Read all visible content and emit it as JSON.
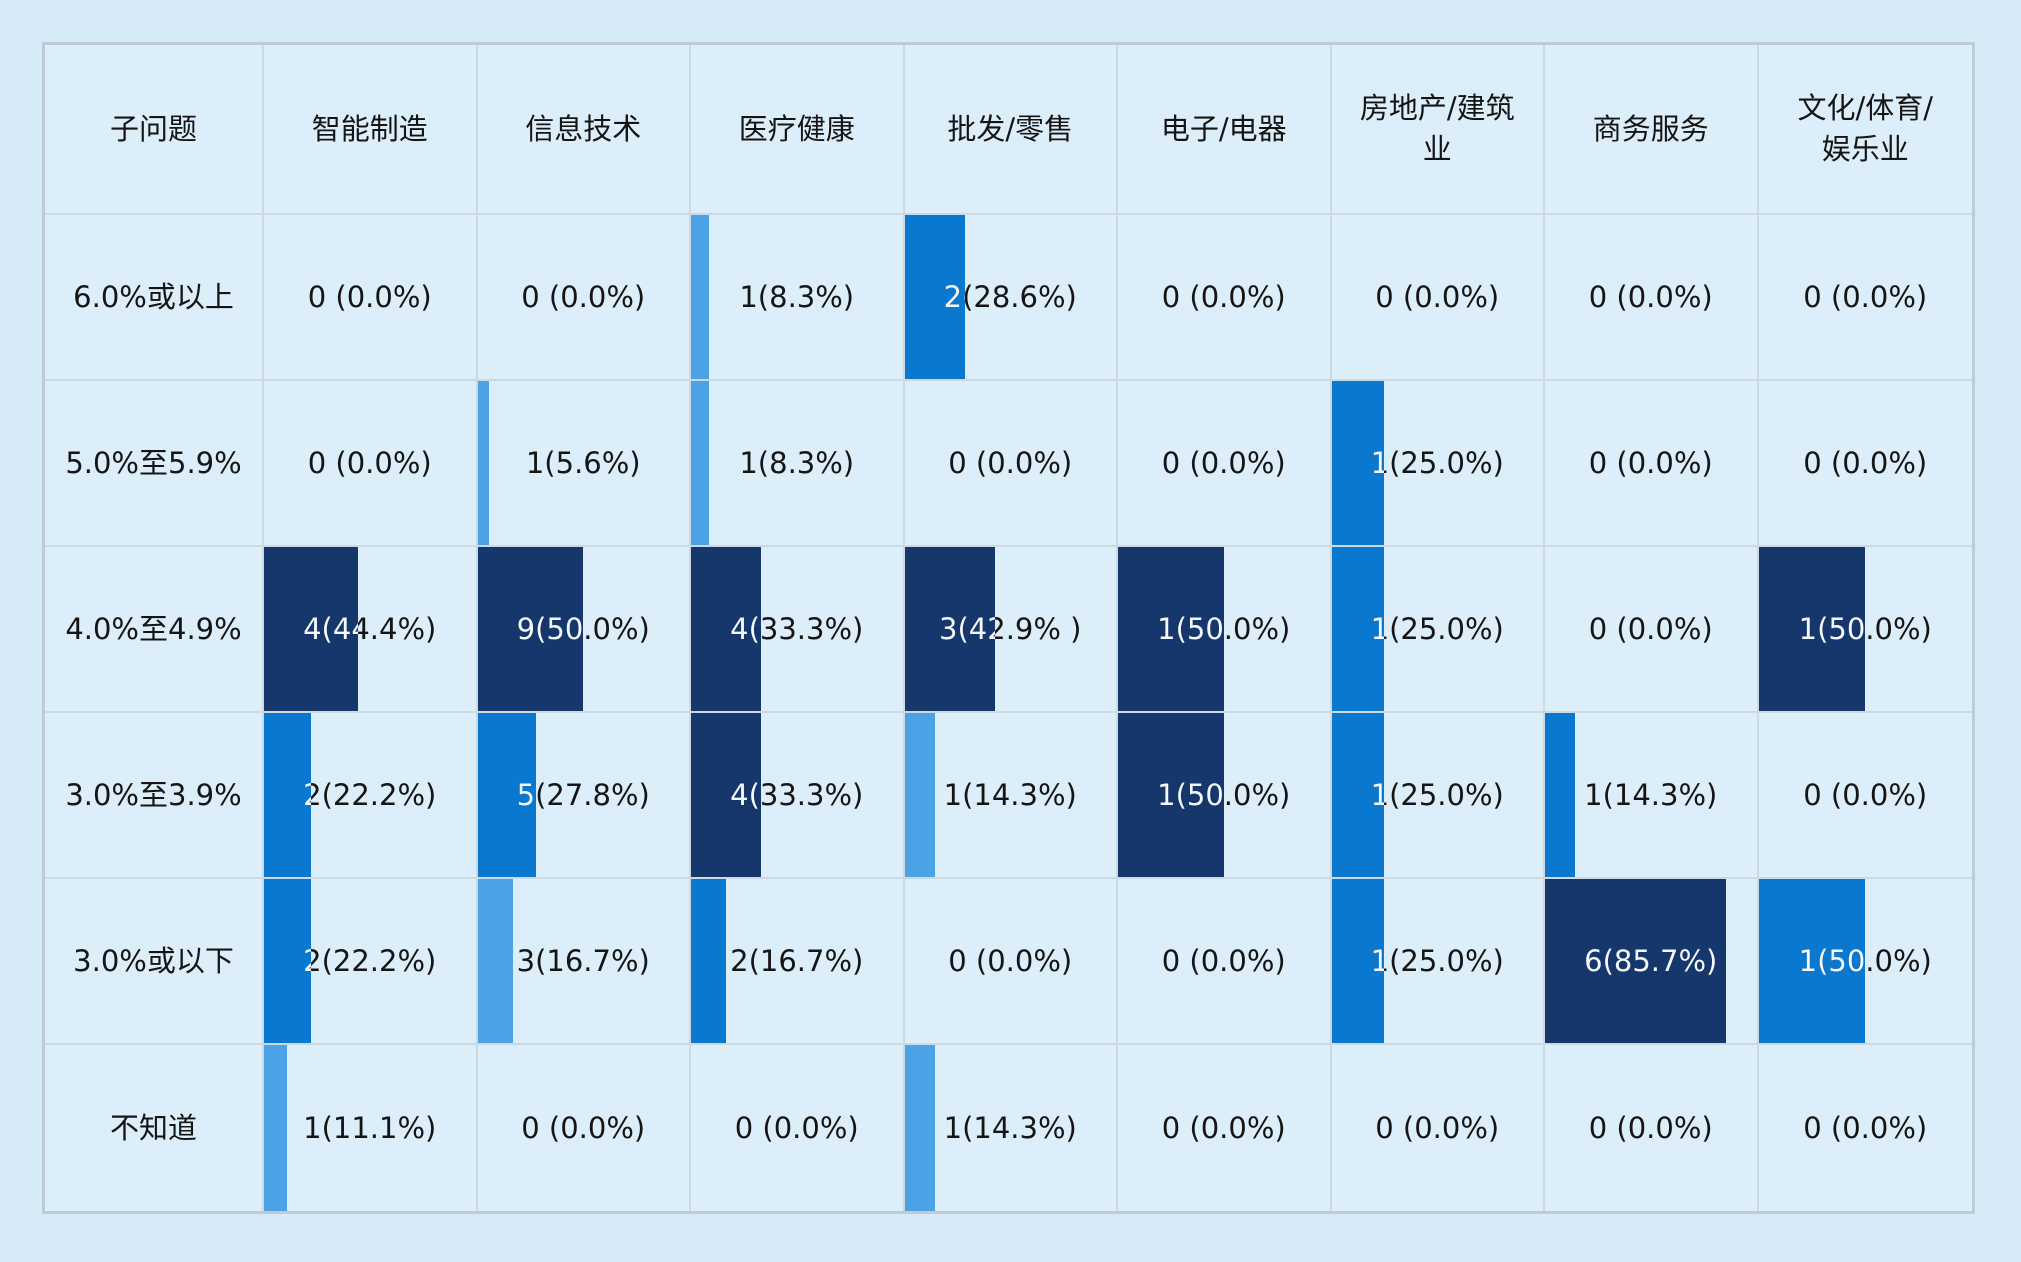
{
  "page": {
    "background_color": "#d7eaf7",
    "table_background": "#dceef9",
    "grid_line_color": "#cdd9e1",
    "outer_border_color": "#c0ccd5",
    "text_color": "#151515",
    "bar_text_color": "#ffffff"
  },
  "chart_data": {
    "type": "table",
    "title": "",
    "description": "Survey cross-tab table with in-cell data bars; each cell shows count(percent) per industry",
    "bar_colors": {
      "light": "#4BA3E6",
      "medium": "#0A78CF",
      "dark": "#15376B"
    },
    "columns": [
      "子问题",
      "智能制造",
      "信息技术",
      "医疗健康",
      "批发/零售",
      "电子/电器",
      "房地产/建筑业",
      "商务服务",
      "文化/体育/娱乐业"
    ],
    "rows": [
      {
        "label": "6.0%或以上",
        "cells": [
          {
            "text": "0 (0.0%)",
            "count": 0,
            "pct": 0
          },
          {
            "text": "0 (0.0%)",
            "count": 0,
            "pct": 0
          },
          {
            "text": "1(8.3%)",
            "count": 1,
            "pct": 8.3,
            "level": "light"
          },
          {
            "text": "2(28.6%)",
            "count": 2,
            "pct": 28.6,
            "level": "medium"
          },
          {
            "text": "0 (0.0%)",
            "count": 0,
            "pct": 0
          },
          {
            "text": "0 (0.0%)",
            "count": 0,
            "pct": 0
          },
          {
            "text": "0 (0.0%)",
            "count": 0,
            "pct": 0
          },
          {
            "text": "0 (0.0%)",
            "count": 0,
            "pct": 0
          }
        ]
      },
      {
        "label": "5.0%至5.9%",
        "cells": [
          {
            "text": "0 (0.0%)",
            "count": 0,
            "pct": 0
          },
          {
            "text": "1(5.6%)",
            "count": 1,
            "pct": 5.6,
            "level": "light"
          },
          {
            "text": "1(8.3%)",
            "count": 1,
            "pct": 8.3,
            "level": "light"
          },
          {
            "text": "0 (0.0%)",
            "count": 0,
            "pct": 0
          },
          {
            "text": "0 (0.0%)",
            "count": 0,
            "pct": 0
          },
          {
            "text": "1(25.0%)",
            "count": 1,
            "pct": 25.0,
            "level": "medium"
          },
          {
            "text": "0 (0.0%)",
            "count": 0,
            "pct": 0
          },
          {
            "text": "0 (0.0%)",
            "count": 0,
            "pct": 0
          }
        ]
      },
      {
        "label": "4.0%至4.9%",
        "cells": [
          {
            "text": "4(44.4%)",
            "count": 4,
            "pct": 44.4,
            "level": "dark"
          },
          {
            "text": "9(50.0%)",
            "count": 9,
            "pct": 50.0,
            "level": "dark"
          },
          {
            "text": "4(33.3%)",
            "count": 4,
            "pct": 33.3,
            "level": "dark"
          },
          {
            "text": "3(42.9% )",
            "count": 3,
            "pct": 42.9,
            "level": "dark"
          },
          {
            "text": "1(50.0%)",
            "count": 1,
            "pct": 50.0,
            "level": "dark"
          },
          {
            "text": "1(25.0%)",
            "count": 1,
            "pct": 25.0,
            "level": "medium"
          },
          {
            "text": "0 (0.0%)",
            "count": 0,
            "pct": 0
          },
          {
            "text": "1(50.0%)",
            "count": 1,
            "pct": 50.0,
            "level": "dark"
          }
        ]
      },
      {
        "label": "3.0%至3.9%",
        "cells": [
          {
            "text": "2(22.2%)",
            "count": 2,
            "pct": 22.2,
            "level": "medium"
          },
          {
            "text": "5(27.8%)",
            "count": 5,
            "pct": 27.8,
            "level": "medium"
          },
          {
            "text": "4(33.3%)",
            "count": 4,
            "pct": 33.3,
            "level": "dark"
          },
          {
            "text": "1(14.3%)",
            "count": 1,
            "pct": 14.3,
            "level": "light"
          },
          {
            "text": "1(50.0%)",
            "count": 1,
            "pct": 50.0,
            "level": "dark"
          },
          {
            "text": "1(25.0%)",
            "count": 1,
            "pct": 25.0,
            "level": "medium"
          },
          {
            "text": "1(14.3%)",
            "count": 1,
            "pct": 14.3,
            "level": "medium"
          },
          {
            "text": "0 (0.0%)",
            "count": 0,
            "pct": 0
          }
        ]
      },
      {
        "label": "3.0%或以下",
        "cells": [
          {
            "text": "2(22.2%)",
            "count": 2,
            "pct": 22.2,
            "level": "medium"
          },
          {
            "text": "3(16.7%)",
            "count": 3,
            "pct": 16.7,
            "level": "light"
          },
          {
            "text": "2(16.7%)",
            "count": 2,
            "pct": 16.7,
            "level": "medium"
          },
          {
            "text": "0 (0.0%)",
            "count": 0,
            "pct": 0
          },
          {
            "text": "0 (0.0%)",
            "count": 0,
            "pct": 0
          },
          {
            "text": "1(25.0%)",
            "count": 1,
            "pct": 25.0,
            "level": "medium"
          },
          {
            "text": "6(85.7%)",
            "count": 6,
            "pct": 85.7,
            "level": "dark"
          },
          {
            "text": "1(50.0%)",
            "count": 1,
            "pct": 50.0,
            "level": "medium"
          }
        ]
      },
      {
        "label": "不知道",
        "cells": [
          {
            "text": "1(11.1%)",
            "count": 1,
            "pct": 11.1,
            "level": "light"
          },
          {
            "text": "0 (0.0%)",
            "count": 0,
            "pct": 0
          },
          {
            "text": "0 (0.0%)",
            "count": 0,
            "pct": 0
          },
          {
            "text": "1(14.3%)",
            "count": 1,
            "pct": 14.3,
            "level": "light"
          },
          {
            "text": "0 (0.0%)",
            "count": 0,
            "pct": 0
          },
          {
            "text": "0 (0.0%)",
            "count": 0,
            "pct": 0
          },
          {
            "text": "0 (0.0%)",
            "count": 0,
            "pct": 0
          },
          {
            "text": "0 (0.0%)",
            "count": 0,
            "pct": 0
          }
        ]
      }
    ]
  }
}
